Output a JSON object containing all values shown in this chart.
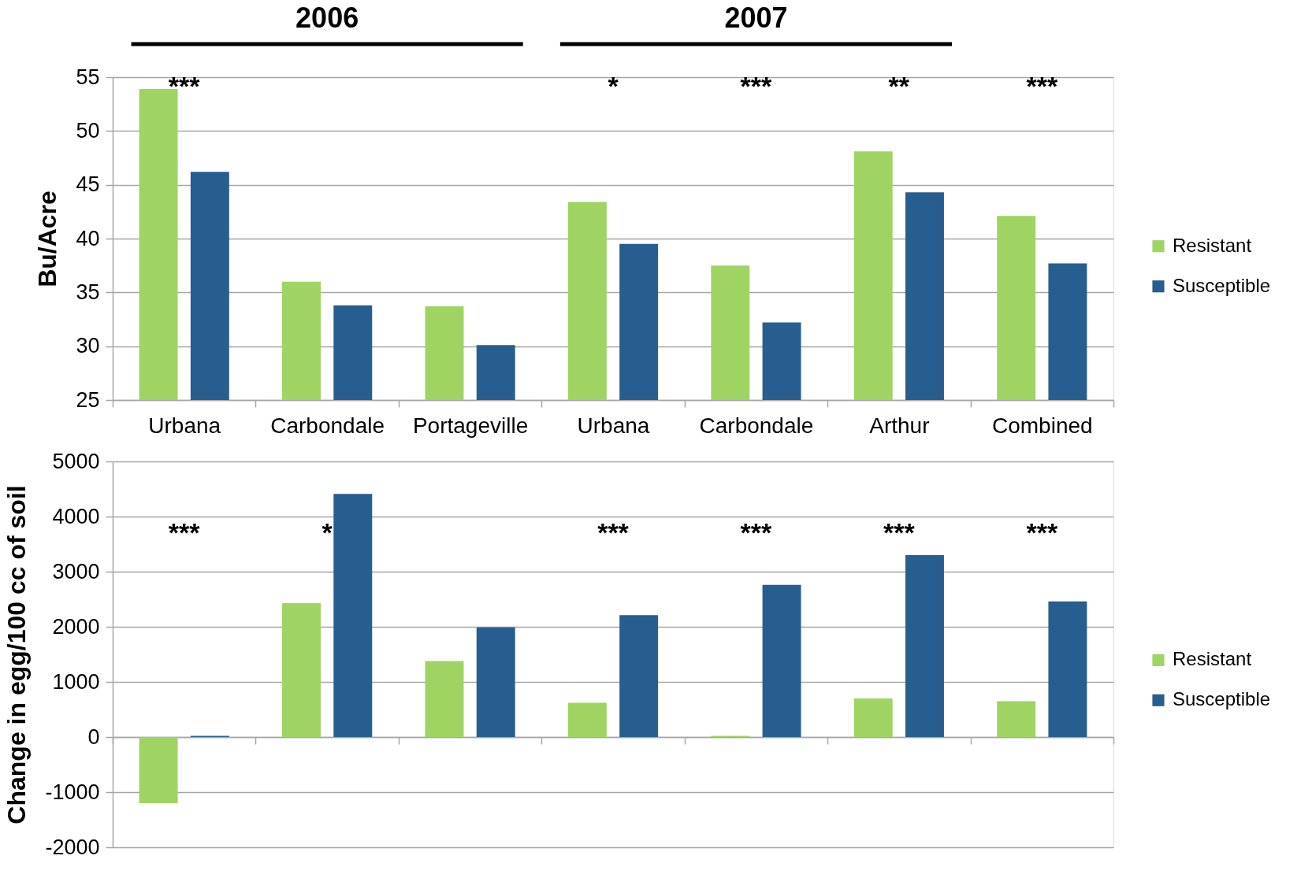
{
  "chart_data": [
    {
      "type": "bar",
      "ylabel": "Bu/Acre",
      "categories": [
        "Urbana",
        "Carbondale",
        "Portageville",
        "Urbana",
        "Carbondale",
        "Arthur",
        "Combined"
      ],
      "series": [
        {
          "name": "Resistant",
          "color": "#9fd463",
          "values": [
            53.9,
            36.0,
            33.7,
            43.4,
            37.5,
            48.1,
            42.1
          ]
        },
        {
          "name": "Susceptible",
          "color": "#285e8f",
          "values": [
            46.2,
            33.8,
            30.1,
            39.5,
            32.2,
            44.3,
            37.7
          ]
        }
      ],
      "ylim": [
        25,
        55
      ],
      "yticks": [
        25,
        30,
        35,
        40,
        45,
        50,
        55
      ],
      "grid": "y",
      "legend": "right",
      "annotations": [
        "2006",
        "2007",
        "***",
        "*",
        "***",
        "**",
        "***"
      ]
    },
    {
      "type": "bar",
      "ylabel": "Change in egg/100 cc of soil",
      "categories": [
        null,
        null,
        null,
        null,
        null,
        null,
        null
      ],
      "series": [
        {
          "name": "Resistant",
          "color": "#9fd463",
          "values": [
            -1200,
            2430,
            1380,
            620,
            20,
            700,
            650
          ]
        },
        {
          "name": "Susceptible",
          "color": "#285e8f",
          "values": [
            20,
            4410,
            1990,
            2210,
            2760,
            3300,
            2460
          ]
        }
      ],
      "ylim": [
        -2000,
        5000
      ],
      "yticks": [
        -2000,
        -1000,
        0,
        1000,
        2000,
        3000,
        4000,
        5000
      ],
      "grid": "y",
      "legend": "right",
      "annotations": [
        "***",
        "*",
        "***",
        "***",
        "***",
        "***"
      ]
    }
  ]
}
